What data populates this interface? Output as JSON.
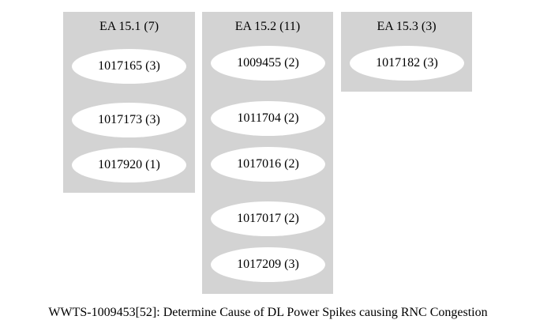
{
  "clusters": [
    {
      "title": "EA 15.1 (7)",
      "nodes": [
        "1017165 (3)",
        "1017173 (3)",
        "1017920 (1)"
      ]
    },
    {
      "title": "EA 15.2 (11)",
      "nodes": [
        "1009455 (2)",
        "1011704 (2)",
        "1017016 (2)",
        "1017017 (2)",
        "1017209 (3)"
      ]
    },
    {
      "title": "EA 15.3 (3)",
      "nodes": [
        "1017182 (3)"
      ]
    }
  ],
  "graph_label": "WWTS-1009453[52]: Determine Cause of DL Power Spikes causing RNC Congestion",
  "colors": {
    "cluster_fill": "#d3d3d3",
    "node_fill": "#ffffff",
    "background": "#ffffff",
    "text": "#000000"
  }
}
